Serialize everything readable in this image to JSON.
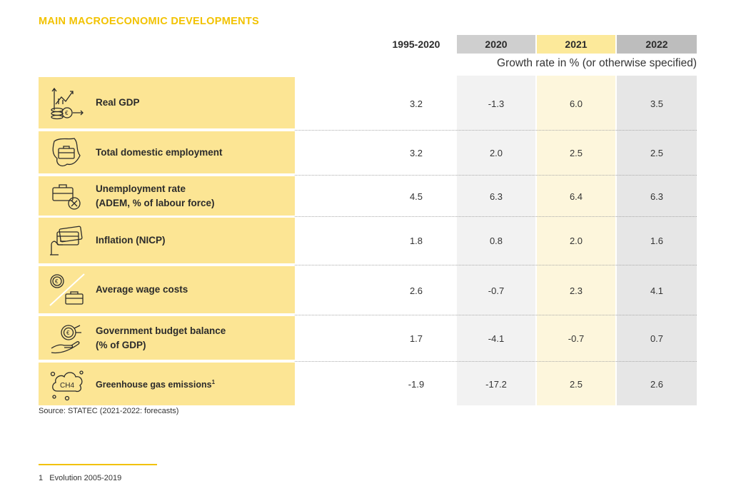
{
  "title": "MAIN MACROECONOMIC DEVELOPMENTS",
  "headers": [
    "1995-2020",
    "2020",
    "2021",
    "2022"
  ],
  "subtitle": "Growth rate in % (or otherwise specified)",
  "rows": [
    {
      "label": "Real GDP",
      "icon": "gdp-growth-icon",
      "values": [
        "3.2",
        "-1.3",
        "6.0",
        "3.5"
      ]
    },
    {
      "label": "Total domestic employment",
      "icon": "briefcase-map-icon",
      "values": [
        "3.2",
        "2.0",
        "2.5",
        "2.5"
      ]
    },
    {
      "label": "Unemployment rate\n(ADEM, % of labour force)",
      "label1": "Unemployment rate",
      "label2": "(ADEM, % of labour force)",
      "icon": "briefcase-cross-icon",
      "values": [
        "4.5",
        "6.3",
        "6.4",
        "6.3"
      ]
    },
    {
      "label": "Inflation (NICP)",
      "icon": "card-hand-icon",
      "values": [
        "1.8",
        "0.8",
        "2.0",
        "1.6"
      ]
    },
    {
      "label": "Average wage costs",
      "icon": "euro-briefcase-icon",
      "values": [
        "2.6",
        "-0.7",
        "2.3",
        "4.1"
      ]
    },
    {
      "label": "Government budget balance\n(% of GDP)",
      "label1": "Government budget balance",
      "label2": "(% of GDP)",
      "icon": "euro-hand-icon",
      "values": [
        "1.7",
        "-4.1",
        "-0.7",
        "0.7"
      ]
    },
    {
      "label": "Greenhouse gas emissions",
      "label_sup": "1",
      "icon": "ch4-cloud-icon",
      "values": [
        "-1.9",
        "-17.2",
        "2.5",
        "2.6"
      ]
    }
  ],
  "icon_text_ch4": "CH4",
  "source": "Source: STATEC (2021-2022: forecasts)",
  "footnote": {
    "number": "1",
    "text": "Evolution 2005-2019"
  },
  "colors": {
    "accent": "#f2c200",
    "label_bg": "#fce594",
    "col_2020_bg": "#f2f2f2",
    "col_2021_bg": "#fdf6dc",
    "col_2022_bg": "#e6e6e6",
    "hdr_2020_bg": "#cfcfcf",
    "hdr_2021_bg": "#fce99a",
    "hdr_2022_bg": "#bdbdbd"
  }
}
